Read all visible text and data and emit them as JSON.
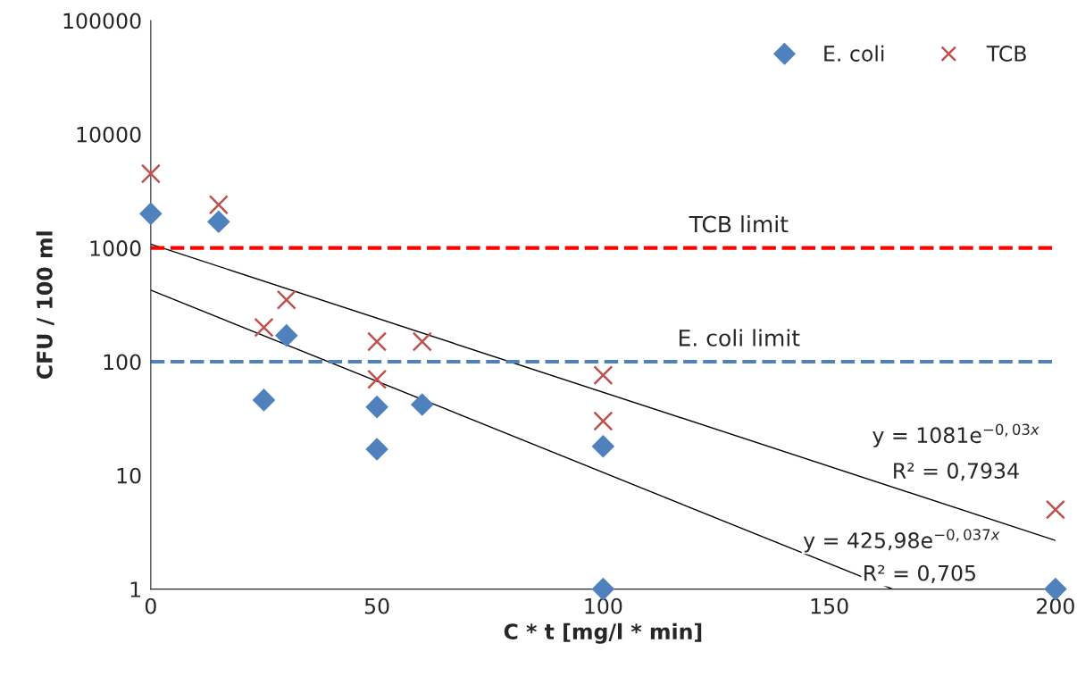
{
  "chart_data": {
    "type": "scatter",
    "xlabel": "C * t [mg/l * min]",
    "ylabel": "CFU / 100 ml",
    "log": "y",
    "xlim": [
      0,
      200
    ],
    "xticks": [
      0,
      50,
      100,
      150,
      200
    ],
    "ylim": [
      1,
      100000
    ],
    "yticks": [
      1,
      10,
      100,
      1000,
      10000,
      100000
    ],
    "grid": false,
    "legend": "top right",
    "series": [
      {
        "name": "E. coli",
        "marker": "diamond",
        "color": "#4f81bd",
        "x": [
          0,
          15,
          25,
          30,
          50,
          50,
          60,
          100,
          100,
          200
        ],
        "values": [
          2000,
          1700,
          46,
          170,
          40,
          17,
          42,
          18,
          1,
          1
        ]
      },
      {
        "name": "TCB",
        "marker": "cross",
        "color": "#c0504d",
        "x": [
          0,
          15,
          25,
          30,
          50,
          50,
          60,
          100,
          100,
          200
        ],
        "values": [
          4500,
          2400,
          200,
          350,
          150,
          70,
          150,
          76,
          30,
          5
        ]
      },
      {
        "type": "line",
        "marker": "none",
        "line_style": "solid",
        "color": "#000000",
        "x": [
          0,
          200
        ],
        "values": [
          1081,
          2.68
        ]
      },
      {
        "type": "line",
        "marker": "none",
        "line_style": "solid",
        "color": "#000000",
        "x": [
          0,
          164
        ],
        "values": [
          426,
          1
        ]
      }
    ],
    "ref_lines": [
      {
        "axis": "y",
        "value": 1000,
        "label": "TCB limit",
        "color": "#ff0000",
        "line_style": "dashed"
      },
      {
        "axis": "y",
        "value": 100,
        "label": "E. coli limit",
        "color": "#4f81bd",
        "line_style": "dashed"
      }
    ],
    "annotations": [
      "y = 1081e$^{−0,03x}$",
      "R² = 0,7934",
      "y = 425,98e$^{−0,037x}$",
      "R² = 0,705"
    ]
  }
}
